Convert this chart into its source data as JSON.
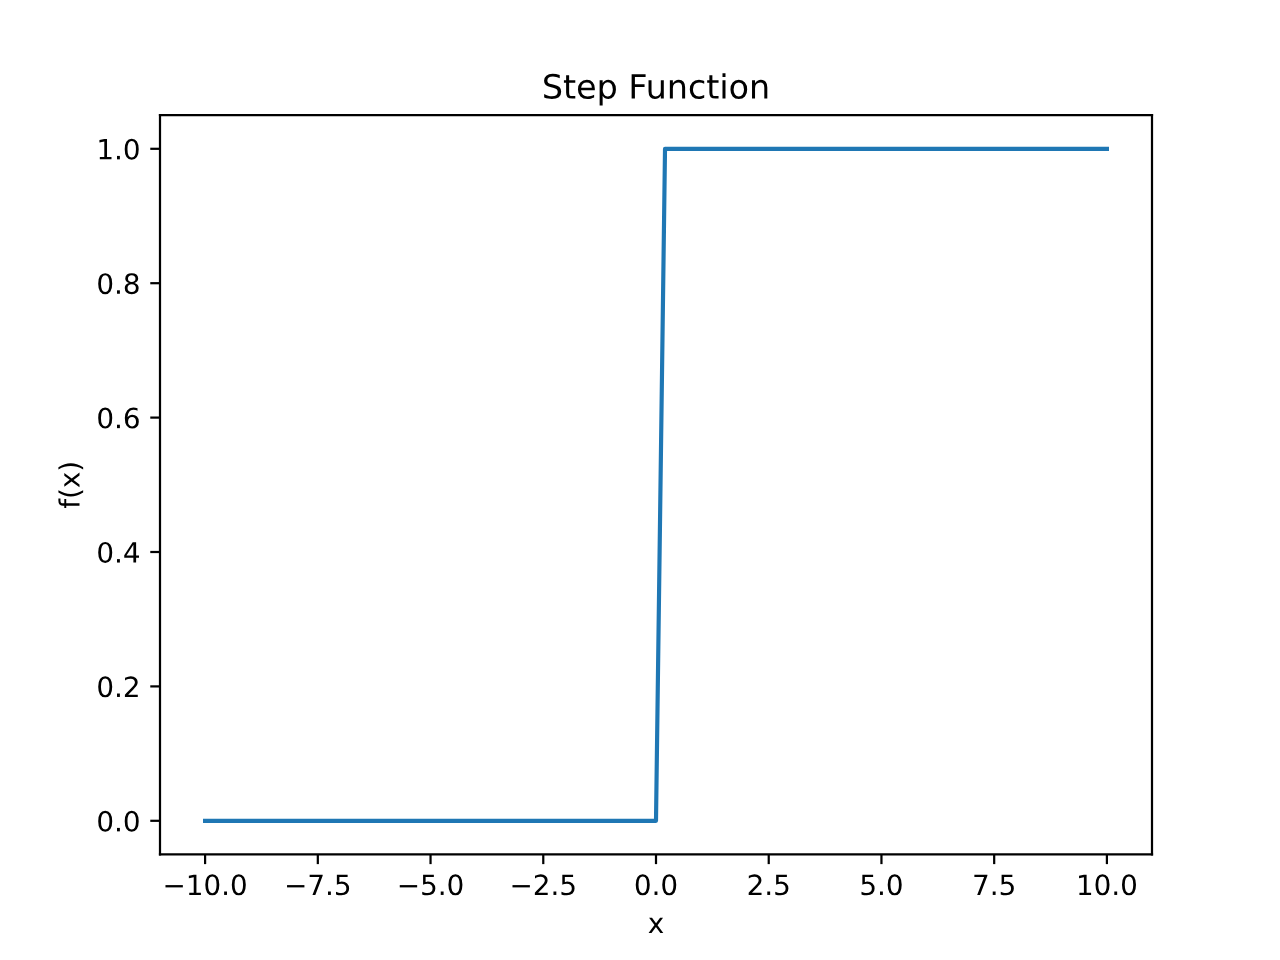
{
  "chart_data": {
    "type": "line",
    "title": "Step Function",
    "xlabel": "x",
    "ylabel": "f(x)",
    "x": [
      -10,
      0,
      0.2,
      10
    ],
    "series": [
      {
        "color": "#1f77b4",
        "values": [
          0,
          0,
          1,
          1
        ]
      }
    ],
    "xlim": [
      -11,
      11
    ],
    "ylim": [
      -0.05,
      1.05
    ],
    "xticks": [
      {
        "value": -10,
        "label": "−10.0"
      },
      {
        "value": -7.5,
        "label": "−7.5"
      },
      {
        "value": -5,
        "label": "−5.0"
      },
      {
        "value": -2.5,
        "label": "−2.5"
      },
      {
        "value": 0,
        "label": "0.0"
      },
      {
        "value": 2.5,
        "label": "2.5"
      },
      {
        "value": 5,
        "label": "5.0"
      },
      {
        "value": 7.5,
        "label": "7.5"
      },
      {
        "value": 10,
        "label": "10.0"
      }
    ],
    "yticks": [
      {
        "value": 0,
        "label": "0.0"
      },
      {
        "value": 0.2,
        "label": "0.2"
      },
      {
        "value": 0.4,
        "label": "0.4"
      },
      {
        "value": 0.6,
        "label": "0.6"
      },
      {
        "value": 0.8,
        "label": "0.8"
      },
      {
        "value": 1,
        "label": "1.0"
      }
    ],
    "grid": false
  }
}
